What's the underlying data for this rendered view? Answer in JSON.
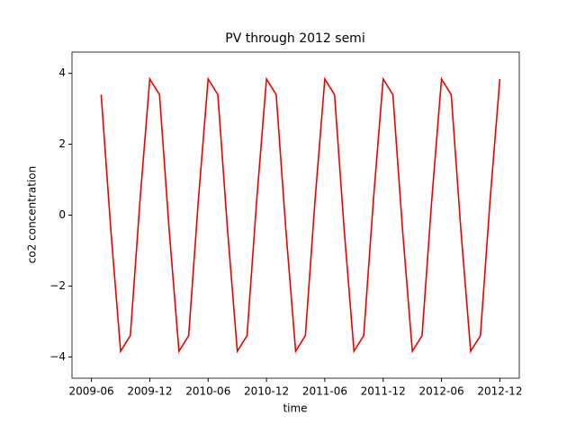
{
  "chart_data": {
    "type": "line",
    "title": "PV through 2012 semi",
    "x_label": "time",
    "y_label": "co2 concentration",
    "x": [
      "2009-07",
      "2009-08",
      "2009-09",
      "2009-10",
      "2009-11",
      "2009-12",
      "2010-01",
      "2010-02",
      "2010-03",
      "2010-04",
      "2010-05",
      "2010-06",
      "2010-07",
      "2010-08",
      "2010-09",
      "2010-10",
      "2010-11",
      "2010-12",
      "2011-01",
      "2011-02",
      "2011-03",
      "2011-04",
      "2011-05",
      "2011-06",
      "2011-07",
      "2011-08",
      "2011-09",
      "2011-10",
      "2011-11",
      "2011-12",
      "2012-01",
      "2012-02",
      "2012-03",
      "2012-04",
      "2012-05",
      "2012-06",
      "2012-07",
      "2012-08",
      "2012-09",
      "2012-10",
      "2012-11",
      "2012-12"
    ],
    "series": [
      {
        "color": "#ee0000",
        "values": [
          3.4,
          -0.44,
          -3.84,
          -3.4,
          0.44,
          3.84,
          3.4,
          -0.44,
          -3.84,
          -3.4,
          0.44,
          3.84,
          3.4,
          -0.44,
          -3.84,
          -3.4,
          0.44,
          3.84,
          3.4,
          -0.44,
          -3.84,
          -3.4,
          0.44,
          3.84,
          3.4,
          -0.44,
          -3.84,
          -3.4,
          0.44,
          3.84,
          3.4,
          -0.44,
          -3.84,
          -3.4,
          0.44,
          3.84,
          3.4,
          -0.44,
          -3.84,
          -3.4,
          0.44,
          3.84
        ]
      }
    ],
    "xlim": [
      "2009-04",
      "2013-02"
    ],
    "xticks": [
      "2009-06",
      "2009-12",
      "2010-06",
      "2010-12",
      "2011-06",
      "2011-12",
      "2012-06",
      "2012-12"
    ],
    "ylim": [
      -4.6,
      4.6
    ],
    "yticks": [
      {
        "value": -4,
        "label": "−4"
      },
      {
        "value": -2,
        "label": "−2"
      },
      0,
      2,
      4
    ]
  }
}
